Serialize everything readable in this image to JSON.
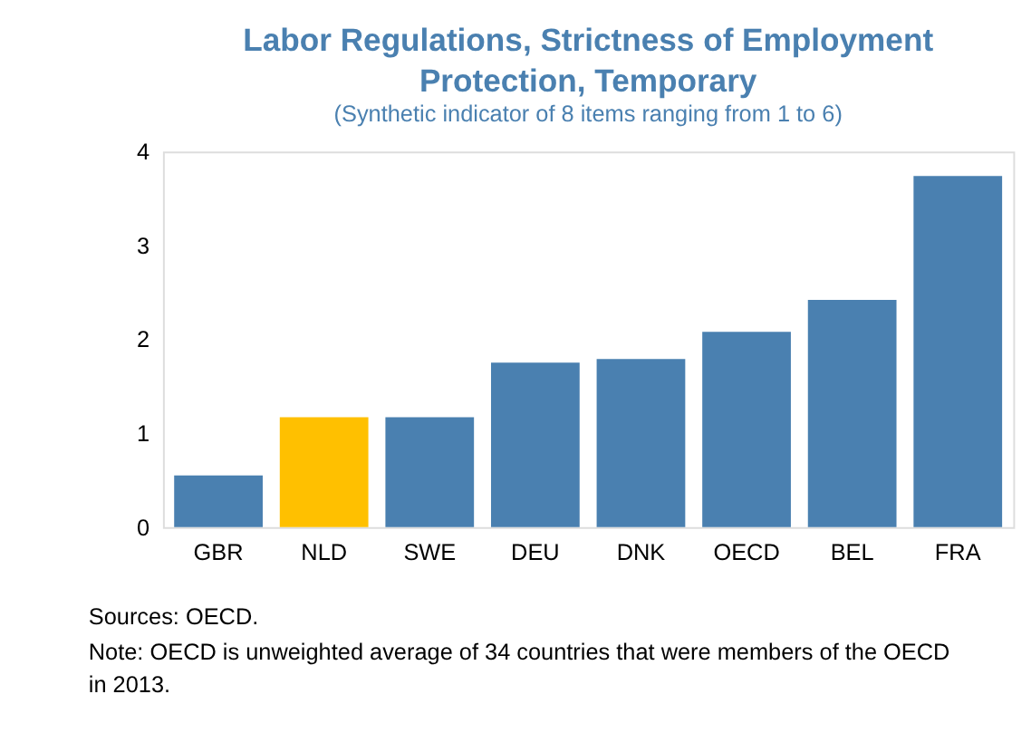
{
  "chart_data": {
    "type": "bar",
    "title": "Labor Regulations, Strictness of Employment Protection, Temporary",
    "subtitle": "(Synthetic indicator of 8 items ranging from 1 to 6)",
    "categories": [
      "GBR",
      "NLD",
      "SWE",
      "DEU",
      "DNK",
      "OECD",
      "BEL",
      "FRA"
    ],
    "values": [
      0.55,
      1.17,
      1.17,
      1.75,
      1.79,
      2.08,
      2.42,
      3.74
    ],
    "colors": [
      "#4a80b0",
      "#ffc000",
      "#4a80b0",
      "#4a80b0",
      "#4a80b0",
      "#4a80b0",
      "#4a80b0",
      "#4a80b0"
    ],
    "ylim": [
      0,
      4
    ],
    "yticks": [
      0,
      1,
      2,
      3,
      4
    ],
    "grid": false,
    "annotations": [
      "Sources: OECD.",
      "Note: OECD is unweighted average of 34 countries that were members of the OECD in 2013."
    ]
  }
}
